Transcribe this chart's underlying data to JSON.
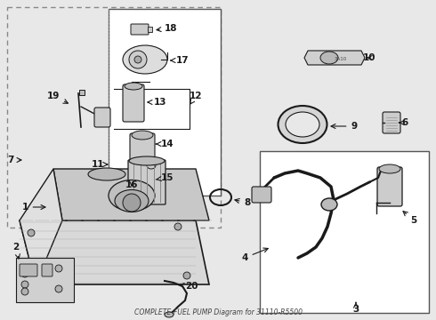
{
  "title": "COMPLETE-FUEL PUMP Diagram for 31110-R5500",
  "bg_color": "#e8e8e8",
  "line_color": "#1a1a1a",
  "box_bg": "#e8e8e8",
  "white_box": "#ffffff",
  "figsize": [
    4.9,
    3.6
  ],
  "dpi": 100,
  "label_positions": {
    "1": {
      "t": [
        0.062,
        0.535
      ],
      "a": [
        0.092,
        0.535
      ]
    },
    "2": {
      "t": [
        0.062,
        0.385
      ],
      "a": [
        0.095,
        0.408
      ]
    },
    "3": {
      "t": [
        0.54,
        0.028
      ],
      "a": [
        0.54,
        0.05
      ]
    },
    "4": {
      "t": [
        0.43,
        0.218
      ],
      "a": [
        0.47,
        0.238
      ]
    },
    "5": {
      "t": [
        0.87,
        0.335
      ],
      "a": [
        0.84,
        0.355
      ]
    },
    "6": {
      "t": [
        0.828,
        0.468
      ],
      "a": [
        0.8,
        0.468
      ]
    },
    "7": {
      "t": [
        0.02,
        0.65
      ],
      "a": [
        0.048,
        0.65
      ]
    },
    "8": {
      "t": [
        0.358,
        0.498
      ],
      "a": [
        0.328,
        0.508
      ]
    },
    "9": {
      "t": [
        0.615,
        0.455
      ],
      "a": [
        0.58,
        0.465
      ]
    },
    "10": {
      "t": [
        0.7,
        0.62
      ],
      "a": [
        0.665,
        0.63
      ]
    },
    "11": {
      "t": [
        0.218,
        0.64
      ],
      "a": [
        0.23,
        0.64
      ]
    },
    "12": {
      "t": [
        0.44,
        0.662
      ],
      "a": [
        0.405,
        0.68
      ]
    },
    "13": {
      "t": [
        0.375,
        0.692
      ],
      "a": [
        0.34,
        0.705
      ]
    },
    "14": {
      "t": [
        0.375,
        0.57
      ],
      "a": [
        0.34,
        0.575
      ]
    },
    "15": {
      "t": [
        0.372,
        0.508
      ],
      "a": [
        0.344,
        0.512
      ]
    },
    "16": {
      "t": [
        0.3,
        0.462
      ],
      "a": [
        0.312,
        0.475
      ]
    },
    "17": {
      "t": [
        0.43,
        0.75
      ],
      "a": [
        0.392,
        0.748
      ]
    },
    "18": {
      "t": [
        0.4,
        0.84
      ],
      "a": [
        0.364,
        0.838
      ]
    },
    "19": {
      "t": [
        0.1,
        0.752
      ],
      "a": [
        0.13,
        0.74
      ]
    },
    "20": {
      "t": [
        0.34,
        0.1
      ],
      "a": [
        0.31,
        0.112
      ]
    }
  }
}
